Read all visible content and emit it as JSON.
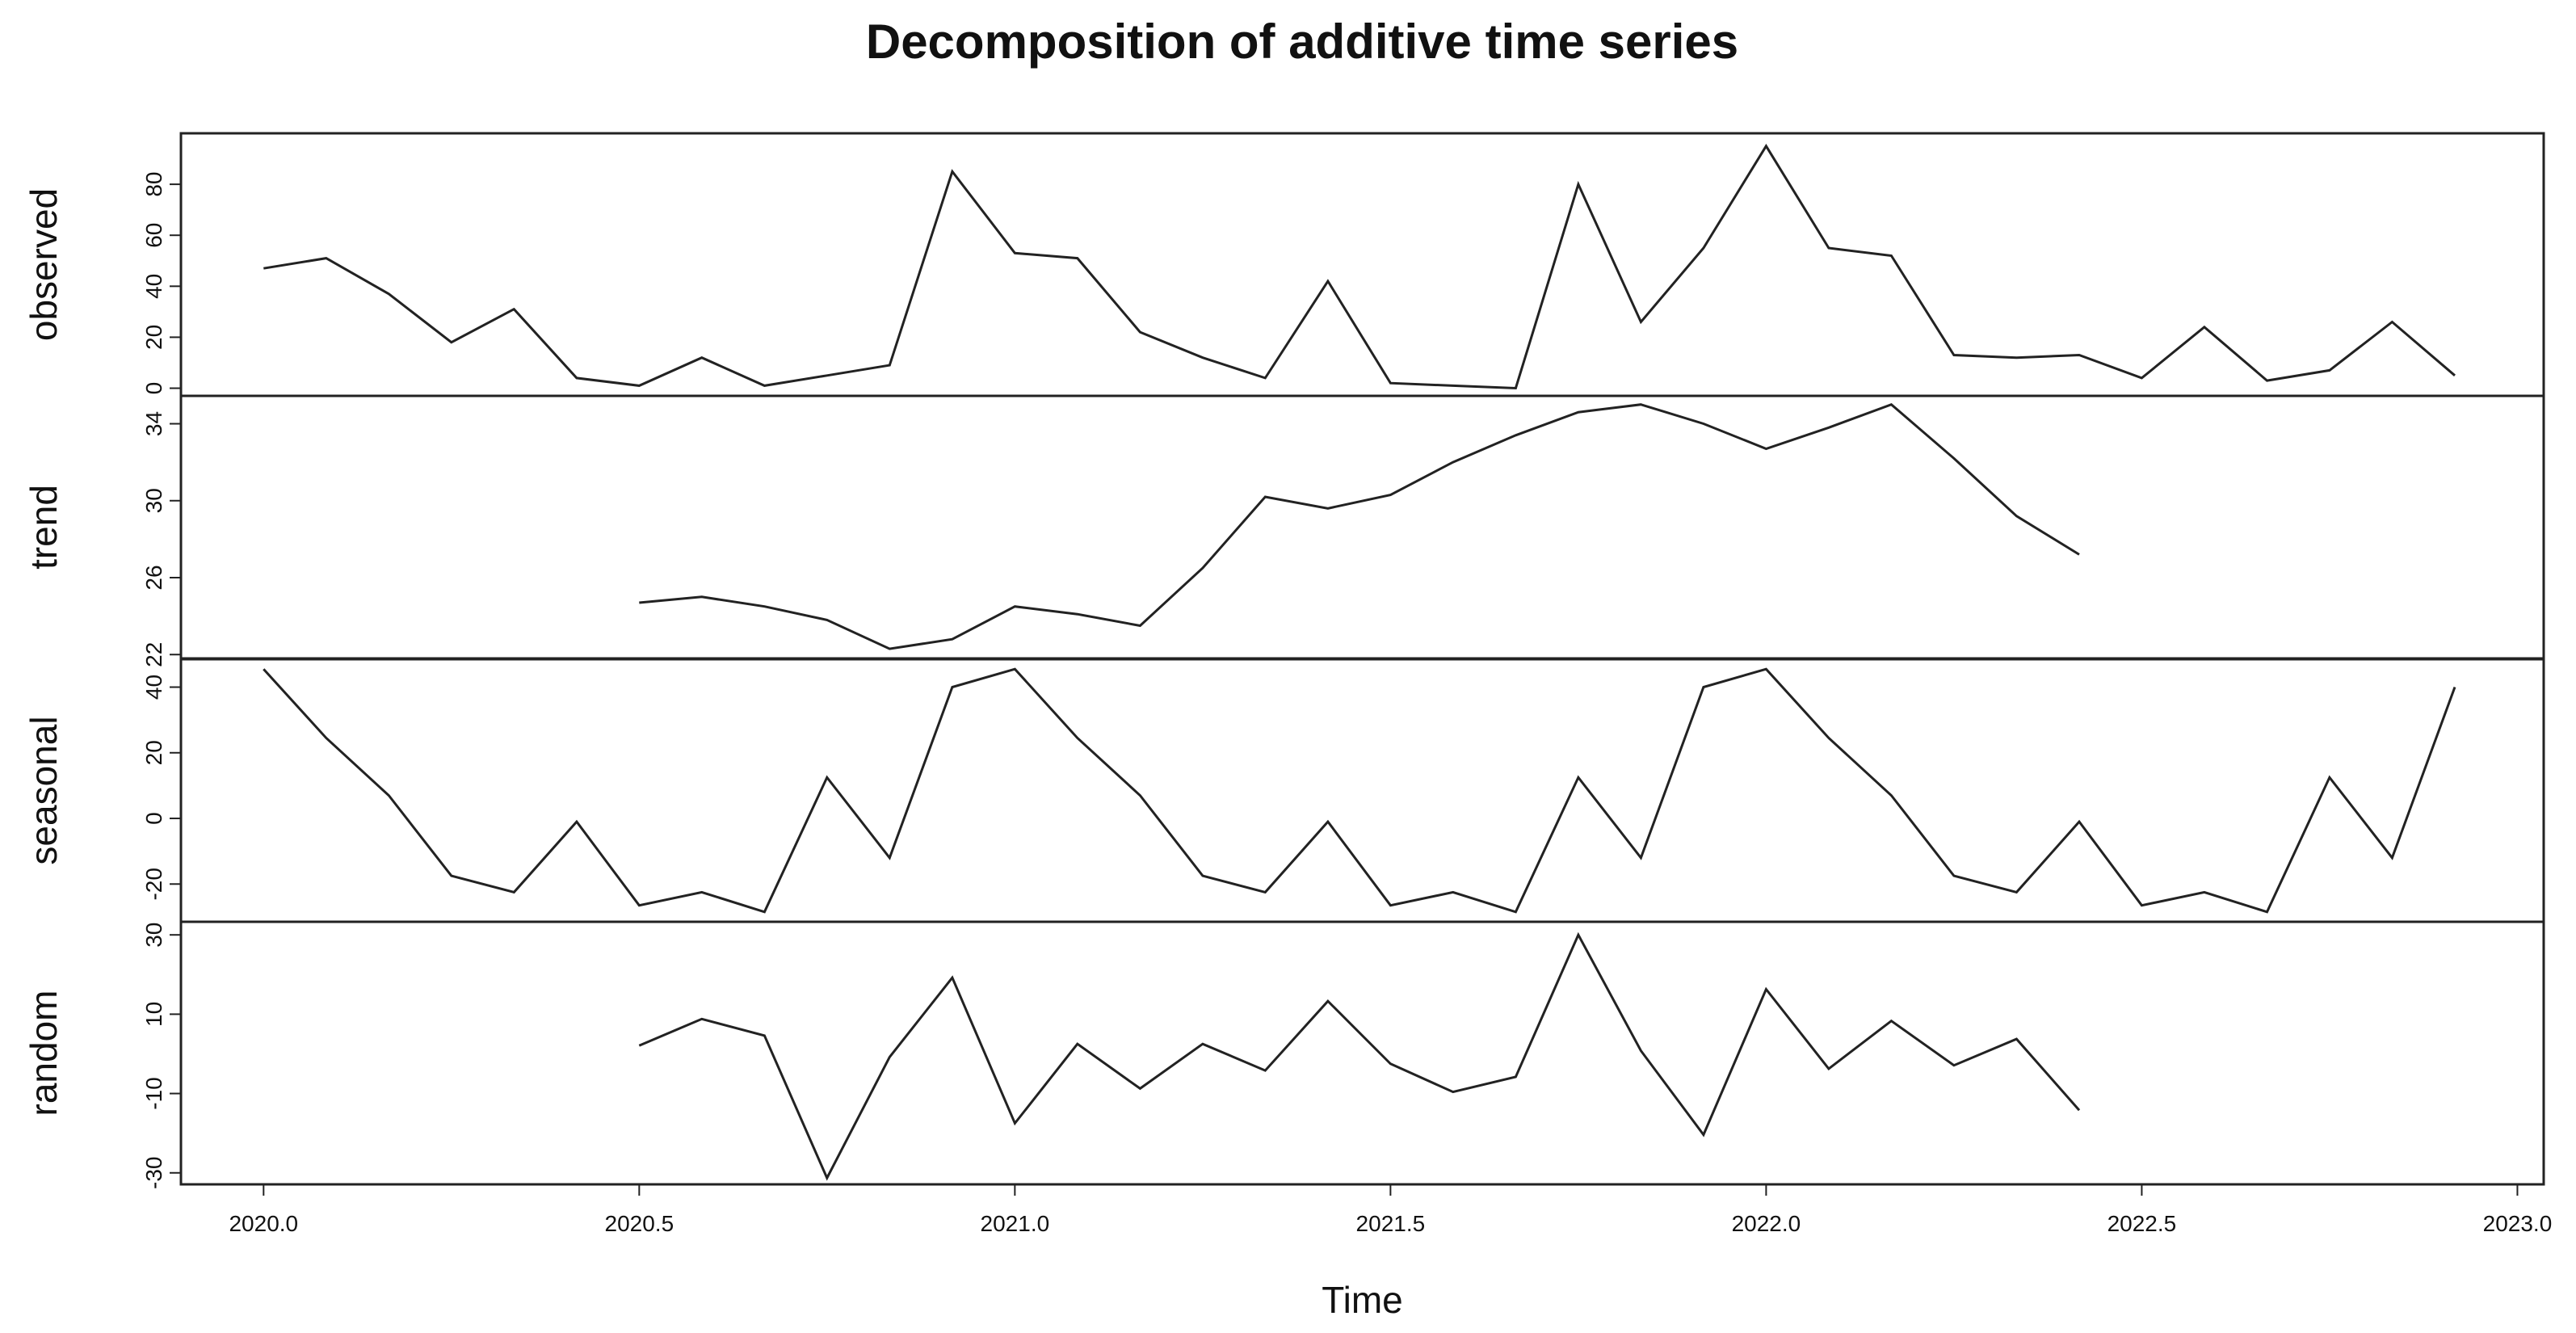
{
  "title": "Decomposition of additive time series",
  "chart_data": [
    {
      "type": "line",
      "ylabel": "observed",
      "x": [
        2020,
        2020.0833,
        2020.1667,
        2020.25,
        2020.3333,
        2020.4167,
        2020.5,
        2020.5833,
        2020.6667,
        2020.75,
        2020.8333,
        2020.9167,
        2021,
        2021.0833,
        2021.1667,
        2021.25,
        2021.3333,
        2021.4167,
        2021.5,
        2021.5833,
        2021.6667,
        2021.75,
        2021.8333,
        2021.9167,
        2022,
        2022.0833,
        2022.1667,
        2022.25,
        2022.3333,
        2022.4167,
        2022.5,
        2022.5833,
        2022.6667,
        2022.75,
        2022.8333,
        2022.9167
      ],
      "values": [
        47,
        51,
        37,
        18,
        31,
        4,
        1,
        12,
        1,
        5,
        9,
        85,
        53,
        51,
        22,
        12,
        4,
        42,
        2,
        1,
        0,
        80,
        26,
        55,
        95,
        55,
        52,
        13,
        12,
        13,
        4,
        24,
        3,
        7,
        26,
        5
      ],
      "xlim": [
        2019.89,
        2023.035
      ],
      "ylim": [
        -3,
        100
      ],
      "yticks": [
        0,
        20,
        40,
        60,
        80
      ]
    },
    {
      "type": "line",
      "ylabel": "trend",
      "x": [
        2020,
        2020.0833,
        2020.1667,
        2020.25,
        2020.3333,
        2020.4167,
        2020.5,
        2020.5833,
        2020.6667,
        2020.75,
        2020.8333,
        2020.9167,
        2021,
        2021.0833,
        2021.1667,
        2021.25,
        2021.3333,
        2021.4167,
        2021.5,
        2021.5833,
        2021.6667,
        2021.75,
        2021.8333,
        2021.9167,
        2022,
        2022.0833,
        2022.1667,
        2022.25,
        2022.3333,
        2022.4167,
        2022.5,
        2022.5833,
        2022.6667,
        2022.75,
        2022.8333,
        2022.9167
      ],
      "values": [
        null,
        null,
        null,
        null,
        null,
        null,
        24.7,
        25.0,
        24.5,
        23.8,
        22.3,
        22.8,
        24.5,
        24.1,
        23.5,
        26.5,
        30.2,
        29.6,
        30.3,
        32.0,
        33.4,
        34.6,
        35.0,
        34.0,
        32.7,
        33.8,
        35.0,
        32.2,
        29.2,
        27.2,
        null,
        null,
        null,
        null,
        null,
        null
      ],
      "xlim": [
        2019.89,
        2023.035
      ],
      "ylim": [
        21.8,
        35.45
      ],
      "yticks": [
        22,
        26,
        30,
        34
      ]
    },
    {
      "type": "line",
      "ylabel": "seasonal",
      "x": [
        2020,
        2020.0833,
        2020.1667,
        2020.25,
        2020.3333,
        2020.4167,
        2020.5,
        2020.5833,
        2020.6667,
        2020.75,
        2020.8333,
        2020.9167,
        2021,
        2021.0833,
        2021.1667,
        2021.25,
        2021.3333,
        2021.4167,
        2021.5,
        2021.5833,
        2021.6667,
        2021.75,
        2021.8333,
        2021.9167,
        2022,
        2022.0833,
        2022.1667,
        2022.25,
        2022.3333,
        2022.4167,
        2022.5,
        2022.5833,
        2022.6667,
        2022.75,
        2022.8333,
        2022.9167
      ],
      "values": [
        45.5,
        24.5,
        7,
        -17.5,
        -22.5,
        -1,
        -26.5,
        -22.5,
        -28.5,
        12.5,
        -12,
        40,
        45.5,
        24.5,
        7,
        -17.5,
        -22.5,
        -1,
        -26.5,
        -22.5,
        -28.5,
        12.5,
        -12,
        40,
        45.5,
        24.5,
        7,
        -17.5,
        -22.5,
        -1,
        -26.5,
        -22.5,
        -28.5,
        12.5,
        -12,
        40
      ],
      "xlim": [
        2019.89,
        2023.035
      ],
      "ylim": [
        -31.5,
        48.5
      ],
      "yticks": [
        -20,
        0,
        20,
        40
      ]
    },
    {
      "type": "line",
      "ylabel": "random",
      "xlabel": "Time",
      "x": [
        2020,
        2020.0833,
        2020.1667,
        2020.25,
        2020.3333,
        2020.4167,
        2020.5,
        2020.5833,
        2020.6667,
        2020.75,
        2020.8333,
        2020.9167,
        2021,
        2021.0833,
        2021.1667,
        2021.25,
        2021.3333,
        2021.4167,
        2021.5,
        2021.5833,
        2021.6667,
        2021.75,
        2021.8333,
        2021.9167,
        2022,
        2022.0833,
        2022.1667,
        2022.25,
        2022.3333,
        2022.4167,
        2022.5,
        2022.5833,
        2022.6667,
        2022.75,
        2022.8333,
        2022.9167
      ],
      "values": [
        null,
        null,
        null,
        null,
        null,
        null,
        2.1,
        8.8,
        4.6,
        -31.3,
        -0.8,
        19.2,
        -17.5,
        2.5,
        -8.75,
        2.5,
        -4.2,
        13.3,
        -2.5,
        -9.6,
        -5.8,
        30,
        0.8,
        -20.4,
        16.3,
        -3.75,
        8.3,
        -2.9,
        3.75,
        -14.2,
        null,
        null,
        null,
        null,
        null,
        null
      ],
      "xlim": [
        2019.89,
        2023.035
      ],
      "ylim": [
        -32.9,
        33.3
      ],
      "yticks": [
        -30,
        -10,
        10,
        30
      ],
      "xticks": [
        {
          "value": 2020,
          "label": "2020.0"
        },
        {
          "value": 2020.5,
          "label": "2020.5"
        },
        {
          "value": 2021,
          "label": "2021.0"
        },
        {
          "value": 2021.5,
          "label": "2021.5"
        },
        {
          "value": 2022,
          "label": "2022.0"
        },
        {
          "value": 2022.5,
          "label": "2022.5"
        },
        {
          "value": 2023,
          "label": "2023.0"
        }
      ]
    }
  ]
}
